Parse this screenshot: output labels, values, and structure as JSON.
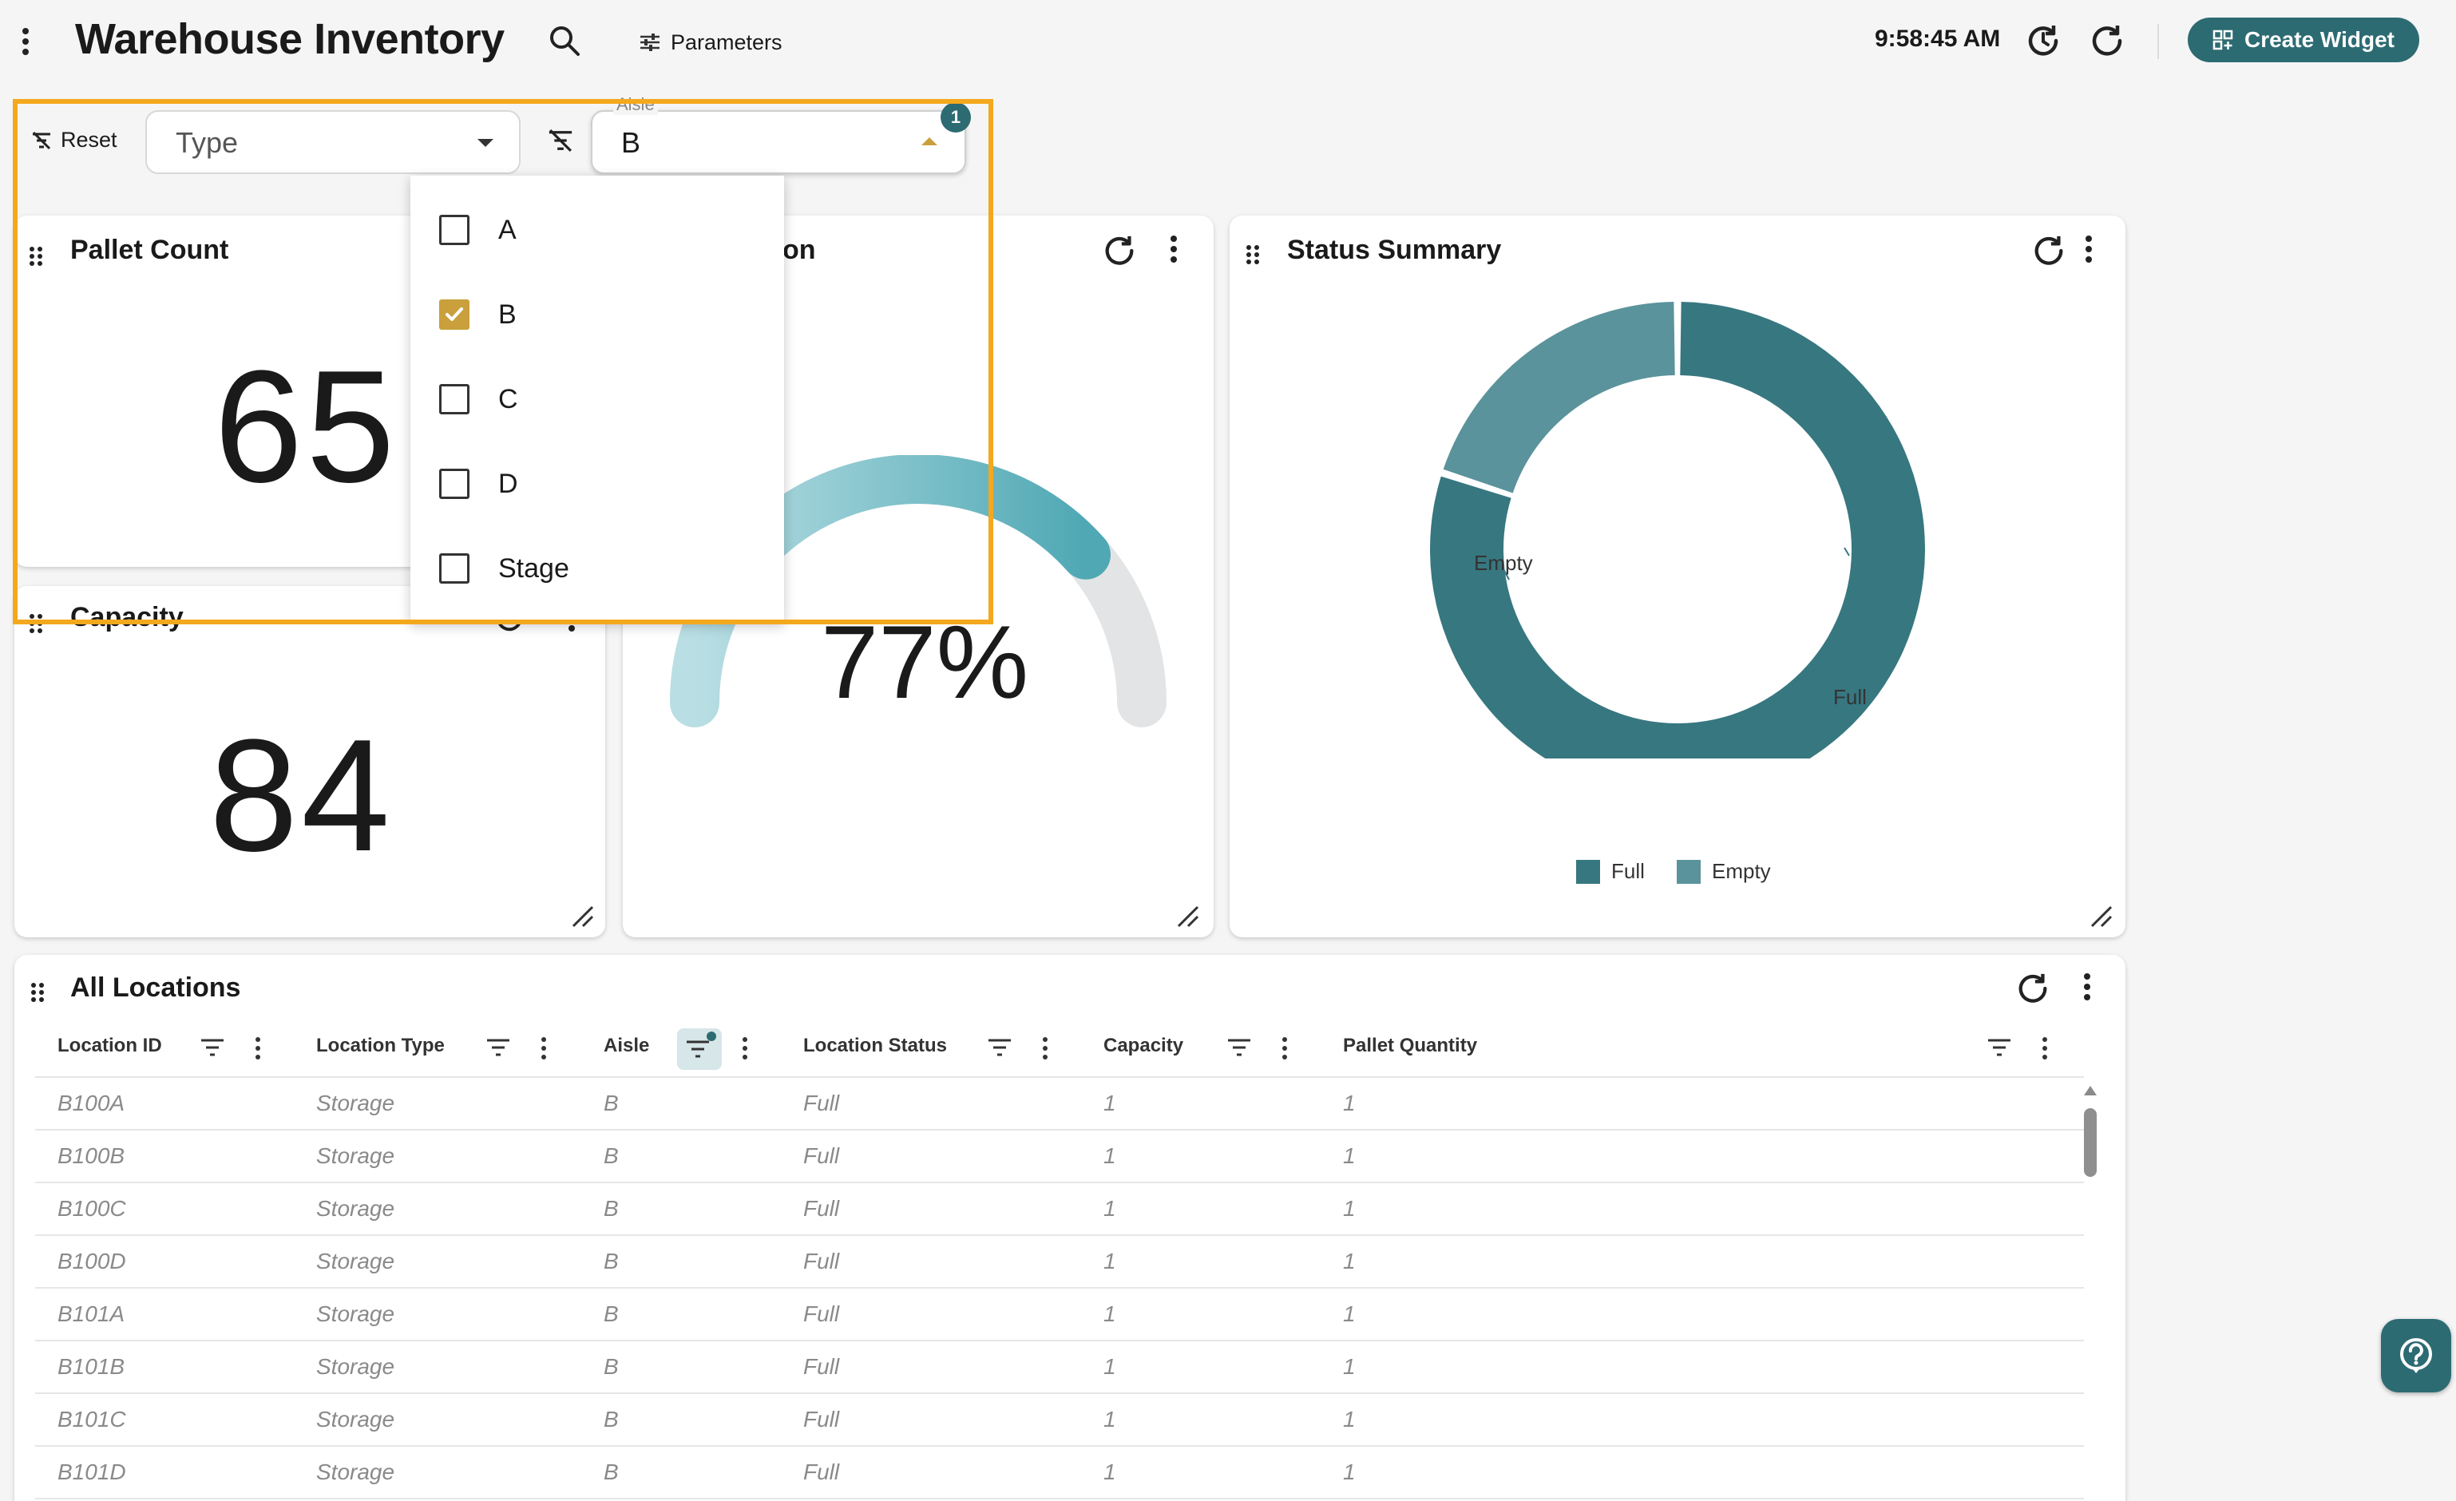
{
  "header": {
    "title": "Warehouse Inventory",
    "parameters_label": "Parameters",
    "time": "9:58:45 AM",
    "create_widget_label": "Create Widget"
  },
  "filters": {
    "reset_label": "Reset",
    "type_select": {
      "placeholder": "Type",
      "value": ""
    },
    "aisle_select": {
      "label": "Aisle",
      "value": "B",
      "badge_count": "1"
    },
    "aisle_options": [
      {
        "label": "A",
        "checked": false
      },
      {
        "label": "B",
        "checked": true
      },
      {
        "label": "C",
        "checked": false
      },
      {
        "label": "D",
        "checked": false
      },
      {
        "label": "Stage",
        "checked": false
      }
    ]
  },
  "widgets": {
    "pallet_count": {
      "title": "Pallet Count",
      "value": "65"
    },
    "capacity": {
      "title": "Capacity",
      "value": "84"
    },
    "utilization": {
      "title_visible_fragment": "on",
      "value": "77%",
      "percent": 77
    },
    "status_summary": {
      "title": "Status Summary",
      "legend": [
        "Full",
        "Empty"
      ],
      "labels": {
        "empty": "Empty",
        "full": "Full"
      }
    },
    "all_locations": {
      "title": "All Locations"
    }
  },
  "chart_data": [
    {
      "type": "pie",
      "title": "Status Summary",
      "categories": [
        "Full",
        "Empty"
      ],
      "values": [
        80,
        20
      ],
      "colors": [
        "#377780",
        "#5a939b"
      ],
      "legend_position": "bottom"
    }
  ],
  "colors": {
    "accent": "#2d6b73",
    "highlight": "#f4a81d",
    "checkbox_checked": "#c9a03c",
    "gauge_fill": "#5eb1bc",
    "gauge_track": "#e2e4e6"
  },
  "table": {
    "columns": [
      "Location ID",
      "Location Type",
      "Aisle",
      "Location Status",
      "Capacity",
      "Pallet Quantity"
    ],
    "rows": [
      [
        "B100A",
        "Storage",
        "B",
        "Full",
        "1",
        "1"
      ],
      [
        "B100B",
        "Storage",
        "B",
        "Full",
        "1",
        "1"
      ],
      [
        "B100C",
        "Storage",
        "B",
        "Full",
        "1",
        "1"
      ],
      [
        "B100D",
        "Storage",
        "B",
        "Full",
        "1",
        "1"
      ],
      [
        "B101A",
        "Storage",
        "B",
        "Full",
        "1",
        "1"
      ],
      [
        "B101B",
        "Storage",
        "B",
        "Full",
        "1",
        "1"
      ],
      [
        "B101C",
        "Storage",
        "B",
        "Full",
        "1",
        "1"
      ],
      [
        "B101D",
        "Storage",
        "B",
        "Full",
        "1",
        "1"
      ]
    ]
  }
}
